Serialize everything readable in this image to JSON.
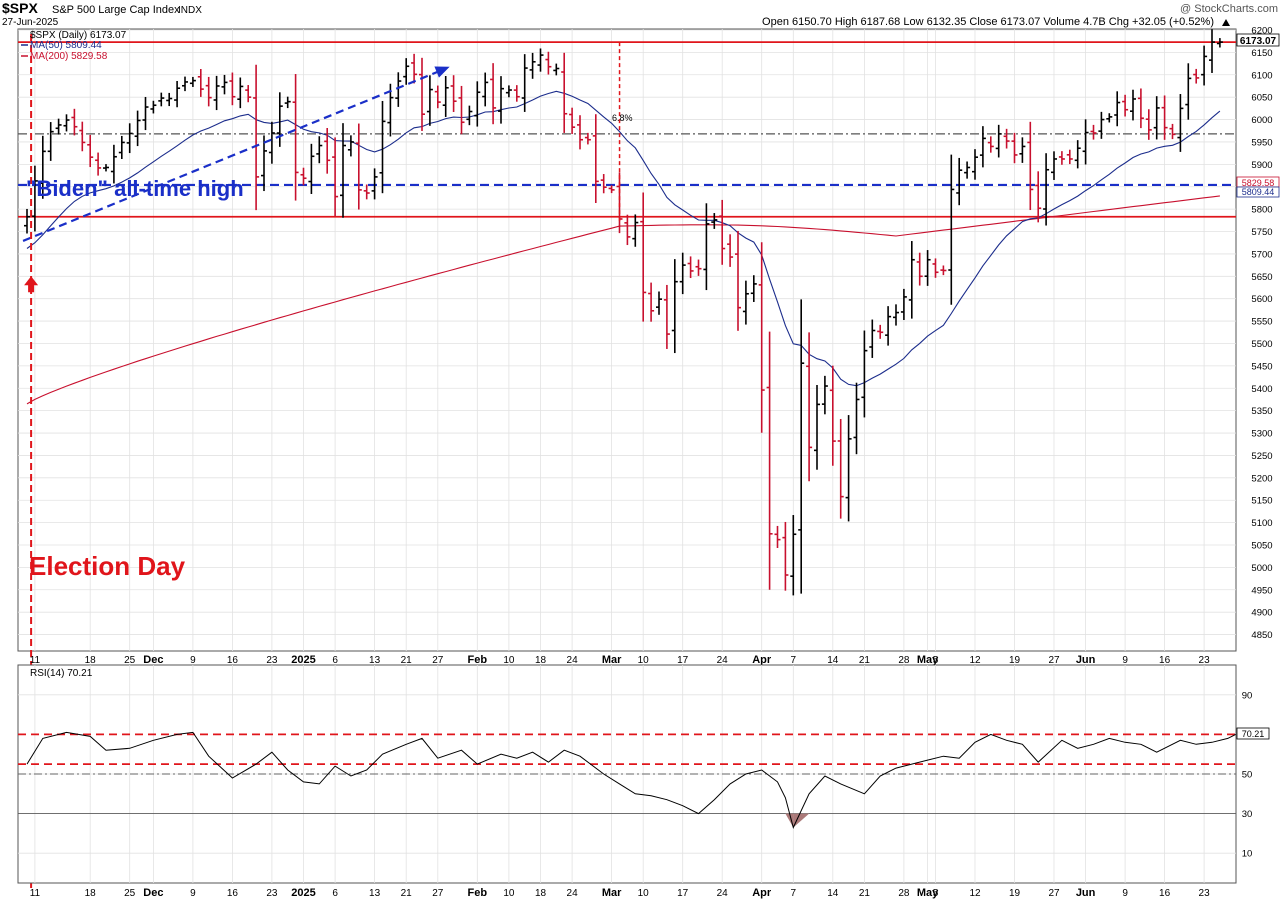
{
  "header": {
    "ticker": "$SPX",
    "name": "S&P 500 Large Cap Index",
    "exchange": "INDX",
    "date": "27-Jun-2025",
    "watermark": "@ StockCharts.com",
    "ohlc_line": "Open 6150.70  High 6187.68  Low 6132.35  Close 6173.07  Volume 4.7B  Chg +32.05 (+0.52%)",
    "ohlc_arrow": "up"
  },
  "legend": {
    "price": "$SPX (Daily) 6173.07",
    "ma50": "MA(50) 5809.44",
    "ma200": "MA(200) 5829.58"
  },
  "tags": {
    "close": "6173.07",
    "ma200": "5829.58",
    "ma50": "5809.44",
    "rsi": "70.21"
  },
  "annotations": {
    "biden": "\"Biden\" all-time high",
    "election": "Election Day",
    "drawdown": "6.8%"
  },
  "rsi_panel": {
    "label": "RSI(14) 70.21",
    "ticks": [
      90,
      70,
      50,
      30,
      10
    ],
    "overbought": 70,
    "dashed_level": 55
  },
  "x_axis": {
    "labels": [
      {
        "d": 1,
        "t": "11",
        "b": false
      },
      {
        "d": 8,
        "t": "18",
        "b": false
      },
      {
        "d": 13,
        "t": "25",
        "b": false
      },
      {
        "d": 16,
        "t": "Dec",
        "b": true
      },
      {
        "d": 21,
        "t": "9",
        "b": false
      },
      {
        "d": 26,
        "t": "16",
        "b": false
      },
      {
        "d": 31,
        "t": "23",
        "b": false
      },
      {
        "d": 35,
        "t": "2025",
        "b": true
      },
      {
        "d": 39,
        "t": "6",
        "b": false
      },
      {
        "d": 44,
        "t": "13",
        "b": false
      },
      {
        "d": 48,
        "t": "21",
        "b": false
      },
      {
        "d": 52,
        "t": "27",
        "b": false
      },
      {
        "d": 57,
        "t": "Feb",
        "b": true
      },
      {
        "d": 61,
        "t": "10",
        "b": false
      },
      {
        "d": 65,
        "t": "18",
        "b": false
      },
      {
        "d": 69,
        "t": "24",
        "b": false
      },
      {
        "d": 74,
        "t": "Mar",
        "b": true
      },
      {
        "d": 78,
        "t": "10",
        "b": false
      },
      {
        "d": 83,
        "t": "17",
        "b": false
      },
      {
        "d": 88,
        "t": "24",
        "b": false
      },
      {
        "d": 93,
        "t": "Apr",
        "b": true
      },
      {
        "d": 97,
        "t": "7",
        "b": false
      },
      {
        "d": 102,
        "t": "14",
        "b": false
      },
      {
        "d": 106,
        "t": "21",
        "b": false
      },
      {
        "d": 111,
        "t": "28",
        "b": false
      },
      {
        "d": 114,
        "t": "May",
        "b": true
      },
      {
        "d": 115,
        "t": "5",
        "b": false
      },
      {
        "d": 120,
        "t": "12",
        "b": false
      },
      {
        "d": 125,
        "t": "19",
        "b": false
      },
      {
        "d": 130,
        "t": "27",
        "b": false
      },
      {
        "d": 134,
        "t": "Jun",
        "b": true
      },
      {
        "d": 139,
        "t": "9",
        "b": false
      },
      {
        "d": 144,
        "t": "16",
        "b": false
      },
      {
        "d": 149,
        "t": "23",
        "b": false
      }
    ]
  },
  "chart_data": {
    "type": "bar",
    "title": "$SPX S&P 500 Large Cap Index INDX",
    "price_range": [
      4820,
      6200
    ],
    "price_ticks": [
      4850,
      4900,
      4950,
      5000,
      5050,
      5100,
      5150,
      5200,
      5250,
      5300,
      5350,
      5400,
      5450,
      5500,
      5550,
      5600,
      5650,
      5700,
      5750,
      5800,
      5850,
      5900,
      5950,
      6000,
      6050,
      6100,
      6150,
      6200
    ],
    "horizontal_levels": {
      "record_high_red": 6173,
      "biden_high_blue": 5854,
      "election_day_red": 5783,
      "midline_gray": 5968
    },
    "trend_arrow": {
      "from": {
        "day": -0.5,
        "price": 5729
      },
      "to": {
        "day": 53.5,
        "price": 6118
      }
    },
    "election_day_index": -1,
    "peak_marker_day": 74.5,
    "days": 154,
    "close": [
      5783,
      5863,
      5929,
      5973,
      5988,
      5999,
      5984,
      5949,
      5916,
      5892,
      5893,
      5917,
      5949,
      5969,
      5998,
      6028,
      6032,
      6048,
      6047,
      6070,
      6084,
      6087,
      6068,
      6049,
      6075,
      6083,
      6051,
      6074,
      6050,
      5872,
      5930,
      5970,
      6030,
      6040,
      5882,
      5869,
      5918,
      5942,
      5909,
      5828,
      5942,
      5950,
      5843,
      5836,
      5872,
      5996,
      6049,
      6086,
      6119,
      6101,
      6012,
      6067,
      6039,
      6071,
      6041,
      5994,
      6018,
      6061,
      6083,
      6026,
      6069,
      6066,
      6051,
      6115,
      6129,
      6144,
      6118,
      6114,
      6013,
      5983,
      5955,
      5955,
      5862,
      5849,
      5843,
      5778,
      5738,
      5770,
      5614,
      5573,
      5599,
      5521,
      5638,
      5675,
      5662,
      5667,
      5767,
      5776,
      5712,
      5693,
      5580,
      5611,
      5633,
      5396,
      5075,
      5062,
      4983,
      5074,
      5456,
      5268,
      5364,
      5405,
      5282,
      5158,
      5287,
      5375,
      5484,
      5529,
      5525,
      5560,
      5569,
      5604,
      5687,
      5650,
      5687,
      5659,
      5663,
      5844,
      5887,
      5893,
      5916,
      5958,
      5940,
      5968,
      5952,
      5921,
      5940,
      5844,
      5802,
      5888,
      5912,
      5912,
      5912,
      5936,
      5971,
      5970,
      6000,
      6006,
      6038,
      6022,
      6046,
      6003,
      5977,
      6026,
      5982,
      5967,
      6025,
      6092,
      6093,
      6141,
      6173,
      6173
    ],
    "rsi": {
      "x": [
        0,
        2,
        5,
        8,
        10,
        13,
        16,
        19,
        21,
        23,
        26,
        29,
        31,
        33,
        35,
        37,
        39,
        41,
        43,
        45,
        48,
        50,
        52,
        55,
        57,
        60,
        62,
        64,
        66,
        68,
        70,
        73,
        75,
        77,
        79,
        81,
        83,
        85,
        87,
        89,
        91,
        93,
        95,
        96,
        97,
        99,
        101,
        103,
        106,
        108,
        110,
        112,
        114,
        116,
        118,
        120,
        122,
        124,
        126,
        128,
        131,
        133,
        135,
        137,
        139,
        141,
        143,
        146,
        148,
        150,
        152,
        153
      ],
      "values": [
        55,
        68,
        71,
        69,
        62,
        63,
        67,
        70,
        71,
        59,
        48,
        55,
        61,
        52,
        46,
        45,
        54,
        49,
        52,
        60,
        65,
        68,
        58,
        62,
        55,
        60,
        58,
        61,
        56,
        62,
        59,
        50,
        45,
        40,
        39,
        37,
        34,
        30,
        37,
        45,
        50,
        52,
        46,
        38,
        23,
        40,
        49,
        45,
        40,
        49,
        53,
        55,
        57,
        59,
        58,
        66,
        70,
        67,
        65,
        56,
        67,
        63,
        65,
        68,
        66,
        65,
        61,
        67,
        65,
        66,
        68,
        70
      ]
    }
  }
}
